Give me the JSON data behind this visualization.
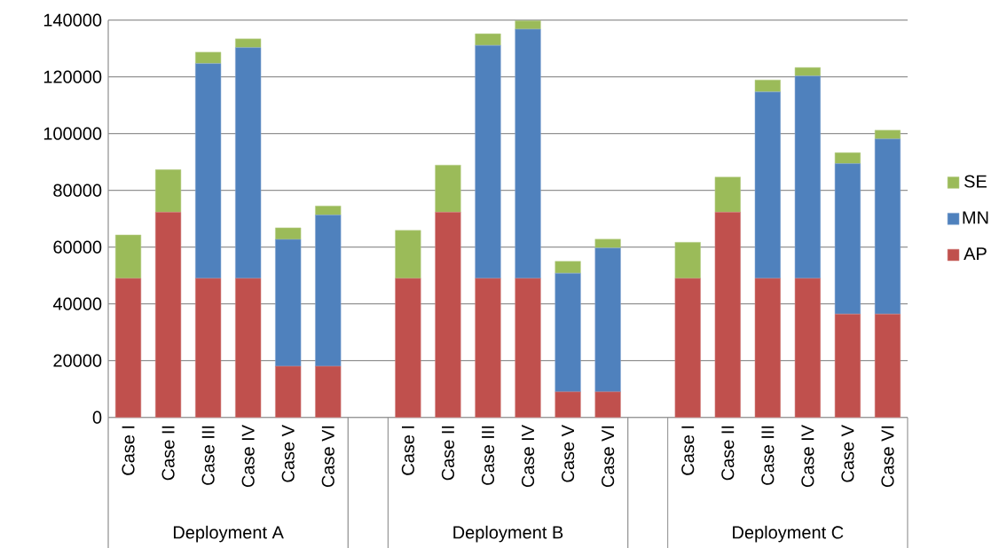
{
  "chart_data": {
    "type": "bar",
    "stacked": true,
    "categories": [
      "Case I",
      "Case II",
      "Case III",
      "Case IV",
      "Case V",
      "Case VI",
      null,
      "Case I",
      "Case II",
      "Case III",
      "Case IV",
      "Case V",
      "Case VI",
      null,
      "Case I",
      "Case II",
      "Case III",
      "Case IV",
      "Case V",
      "Case VI"
    ],
    "series": [
      {
        "name": "AP",
        "color": "#c0504d",
        "values": [
          49000,
          72300,
          49000,
          49000,
          18000,
          18000,
          null,
          49000,
          72300,
          49000,
          49000,
          9000,
          9000,
          null,
          49000,
          72300,
          49000,
          49000,
          36400,
          36400
        ]
      },
      {
        "name": "MN",
        "color": "#4f81bd",
        "values": [
          0,
          0,
          75700,
          81300,
          44700,
          53300,
          null,
          0,
          0,
          82100,
          87800,
          41800,
          50700,
          null,
          0,
          0,
          65700,
          71300,
          53000,
          61700
        ]
      },
      {
        "name": "SE",
        "color": "#9bbb59",
        "values": [
          15300,
          15000,
          4000,
          3100,
          4100,
          3200,
          null,
          16900,
          16600,
          4100,
          3000,
          4200,
          3100,
          null,
          12700,
          12400,
          4200,
          3000,
          3900,
          3100
        ]
      }
    ],
    "annotations": [
      "Deployment A",
      "Deployment B",
      "Deployment C"
    ],
    "ylim": [
      0,
      140000
    ],
    "yticks": [
      0,
      20000,
      40000,
      60000,
      80000,
      100000,
      120000,
      140000
    ],
    "grid": "y",
    "legend": "right"
  }
}
